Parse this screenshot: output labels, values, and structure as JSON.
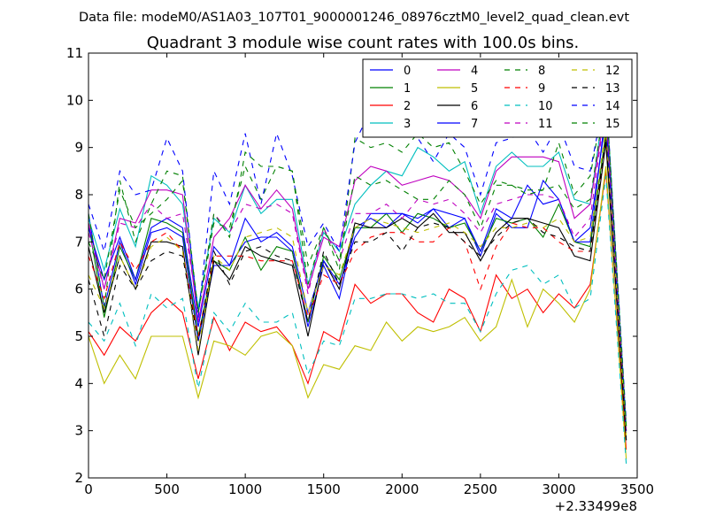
{
  "figure": {
    "suptitle": "Data file: modeM0/AS1A03_107T01_9000001246_08976cztM0_level2_quad_clean.evt"
  },
  "chart_data": {
    "type": "line",
    "title": "Quadrant 3 module wise count rates with 100.0s bins.",
    "xlabel": "",
    "ylabel": "",
    "x_offset_label": "+2.33499e8",
    "xlim": [
      0,
      3500
    ],
    "ylim": [
      2,
      11
    ],
    "xticks": [
      0,
      500,
      1000,
      1500,
      2000,
      2500,
      3000,
      3500
    ],
    "yticks": [
      2,
      3,
      4,
      5,
      6,
      7,
      8,
      9,
      10,
      11
    ],
    "grid": false,
    "legend": {
      "placement": "top-right",
      "columns": 4
    },
    "x": [
      0,
      100,
      200,
      300,
      400,
      500,
      600,
      700,
      800,
      900,
      1000,
      1100,
      1200,
      1300,
      1400,
      1500,
      1600,
      1700,
      1800,
      1900,
      2000,
      2100,
      2200,
      2300,
      2400,
      2500,
      2600,
      2700,
      2800,
      2900,
      3000,
      3100,
      3200,
      3300,
      3430
    ],
    "series": [
      {
        "name": "0",
        "color": "#0000ff",
        "dash": "solid",
        "values": [
          7.6,
          5.6,
          7.0,
          6.1,
          7.2,
          7.3,
          7.1,
          4.9,
          6.5,
          6.5,
          7.0,
          7.1,
          7.1,
          6.8,
          5.2,
          6.5,
          5.8,
          7.3,
          7.5,
          7.3,
          7.6,
          7.5,
          7.7,
          7.3,
          7.5,
          6.7,
          7.6,
          7.3,
          7.3,
          8.3,
          7.9,
          7.0,
          7.0,
          9.8,
          3.0
        ]
      },
      {
        "name": "1",
        "color": "#008000",
        "dash": "solid",
        "values": [
          7.4,
          5.4,
          6.9,
          6.2,
          7.5,
          7.4,
          7.2,
          5.0,
          6.6,
          6.4,
          7.1,
          6.4,
          6.9,
          6.8,
          5.3,
          6.7,
          6.2,
          7.3,
          7.3,
          7.6,
          7.2,
          7.6,
          7.5,
          7.3,
          7.4,
          6.8,
          7.5,
          7.4,
          7.5,
          7.1,
          7.8,
          7.0,
          6.9,
          9.3,
          2.8
        ]
      },
      {
        "name": "2",
        "color": "#ff0000",
        "dash": "solid",
        "values": [
          5.1,
          4.6,
          5.2,
          4.9,
          5.5,
          5.8,
          5.5,
          4.1,
          5.4,
          4.7,
          5.3,
          5.1,
          5.2,
          4.8,
          4.0,
          5.1,
          4.9,
          6.1,
          5.7,
          5.9,
          5.9,
          5.5,
          5.3,
          6.0,
          5.8,
          5.1,
          6.3,
          5.8,
          6.0,
          5.5,
          5.9,
          5.6,
          6.1,
          8.5,
          2.6
        ]
      },
      {
        "name": "3",
        "color": "#00bfbf",
        "dash": "solid",
        "values": [
          7.5,
          6.4,
          7.7,
          6.9,
          8.4,
          8.2,
          7.8,
          5.6,
          7.5,
          7.2,
          8.2,
          7.6,
          7.9,
          7.9,
          6.1,
          7.2,
          6.8,
          7.8,
          8.2,
          8.5,
          8.4,
          9.0,
          8.8,
          8.5,
          8.7,
          7.6,
          8.6,
          8.9,
          8.6,
          8.6,
          8.9,
          7.9,
          7.8,
          10.2,
          3.1
        ]
      },
      {
        "name": "4",
        "color": "#bf00bf",
        "dash": "solid",
        "values": [
          7.4,
          6.0,
          7.5,
          7.4,
          8.1,
          8.1,
          8.0,
          5.3,
          7.1,
          7.5,
          8.2,
          7.7,
          8.1,
          7.7,
          6.0,
          7.1,
          6.9,
          8.3,
          8.6,
          8.5,
          8.2,
          8.3,
          8.4,
          8.3,
          8.0,
          7.5,
          8.5,
          8.8,
          8.8,
          8.8,
          8.7,
          7.5,
          7.8,
          9.9,
          3.0
        ]
      },
      {
        "name": "5",
        "color": "#bfbf00",
        "dash": "solid",
        "values": [
          5.0,
          4.0,
          4.6,
          4.1,
          5.0,
          5.0,
          5.0,
          3.7,
          4.9,
          4.8,
          4.6,
          5.0,
          5.1,
          4.8,
          3.7,
          4.4,
          4.3,
          4.8,
          4.7,
          5.3,
          4.9,
          5.2,
          5.1,
          5.2,
          5.4,
          4.9,
          5.2,
          6.2,
          5.2,
          6.0,
          5.7,
          5.3,
          6.0,
          8.6,
          2.4
        ]
      },
      {
        "name": "6",
        "color": "#000000",
        "dash": "solid",
        "values": [
          6.9,
          5.5,
          6.7,
          6.0,
          7.0,
          7.0,
          6.9,
          4.6,
          6.6,
          6.2,
          6.9,
          6.7,
          6.6,
          6.5,
          5.0,
          6.6,
          6.0,
          7.4,
          7.3,
          7.3,
          7.5,
          7.3,
          7.6,
          7.2,
          7.2,
          6.6,
          7.2,
          7.5,
          7.5,
          7.4,
          7.3,
          6.7,
          6.6,
          9.1,
          2.8
        ]
      },
      {
        "name": "7",
        "color": "#0000ff",
        "dash": "solid",
        "values": [
          7.3,
          6.2,
          7.1,
          6.2,
          7.3,
          7.5,
          7.3,
          5.2,
          6.9,
          6.5,
          7.5,
          7.0,
          7.2,
          6.9,
          5.5,
          6.6,
          6.1,
          7.1,
          7.6,
          7.6,
          7.6,
          7.4,
          7.7,
          7.6,
          7.5,
          6.8,
          7.7,
          7.5,
          8.2,
          7.8,
          7.9,
          7.0,
          7.3,
          9.6,
          3.0
        ]
      },
      {
        "name": "8",
        "color": "#008000",
        "dash": "dashed",
        "values": [
          7.6,
          5.6,
          8.3,
          7.0,
          7.8,
          8.5,
          8.4,
          5.5,
          7.4,
          7.3,
          8.6,
          7.9,
          8.6,
          8.5,
          6.1,
          7.3,
          6.4,
          9.2,
          9.0,
          9.1,
          8.9,
          9.3,
          9.0,
          9.1,
          8.5,
          7.8,
          8.3,
          8.2,
          8.0,
          8.1,
          9.1,
          8.0,
          8.4,
          10.2,
          3.1
        ]
      },
      {
        "name": "9",
        "color": "#ff0000",
        "dash": "dashed",
        "values": [
          6.7,
          5.8,
          7.0,
          6.4,
          7.0,
          7.2,
          6.8,
          5.0,
          6.7,
          6.7,
          6.7,
          6.6,
          6.6,
          6.6,
          5.4,
          6.3,
          6.1,
          6.8,
          7.1,
          7.2,
          7.2,
          7.0,
          7.0,
          7.3,
          7.0,
          6.0,
          6.9,
          7.4,
          7.3,
          7.3,
          7.0,
          6.8,
          6.8,
          9.2,
          2.9
        ]
      },
      {
        "name": "10",
        "color": "#00bfbf",
        "dash": "dashed",
        "values": [
          5.3,
          4.9,
          5.7,
          4.8,
          5.9,
          5.6,
          5.8,
          3.9,
          5.5,
          5.1,
          5.7,
          5.3,
          5.3,
          5.5,
          4.2,
          4.9,
          4.8,
          5.8,
          5.8,
          5.9,
          5.9,
          5.8,
          5.9,
          5.7,
          5.7,
          5.1,
          5.9,
          6.4,
          6.5,
          6.1,
          6.3,
          5.6,
          5.8,
          8.4,
          2.3
        ]
      },
      {
        "name": "11",
        "color": "#bf00bf",
        "dash": "dashed",
        "values": [
          7.2,
          6.0,
          7.4,
          7.3,
          7.8,
          7.5,
          7.6,
          5.5,
          7.6,
          7.2,
          7.8,
          7.7,
          7.8,
          7.6,
          5.9,
          7.3,
          6.6,
          7.6,
          7.6,
          7.8,
          7.5,
          7.9,
          7.8,
          7.9,
          7.6,
          7.2,
          7.8,
          7.9,
          8.0,
          8.0,
          7.9,
          7.1,
          7.5,
          9.9,
          3.0
        ]
      },
      {
        "name": "12",
        "color": "#bfbf00",
        "dash": "dashed",
        "values": [
          6.3,
          5.6,
          6.7,
          6.0,
          6.9,
          7.1,
          6.8,
          4.7,
          6.7,
          6.4,
          7.1,
          7.2,
          7.3,
          7.1,
          5.5,
          6.5,
          6.3,
          7.3,
          7.5,
          7.4,
          7.3,
          7.2,
          7.3,
          7.4,
          7.2,
          6.9,
          7.3,
          7.3,
          7.4,
          7.3,
          7.5,
          7.0,
          7.1,
          9.4,
          2.9
        ]
      },
      {
        "name": "13",
        "color": "#000000",
        "dash": "dashed",
        "values": [
          6.2,
          5.0,
          6.5,
          6.0,
          6.6,
          6.8,
          6.7,
          4.9,
          6.8,
          6.1,
          6.8,
          6.9,
          6.7,
          6.6,
          5.3,
          6.8,
          6.1,
          7.0,
          7.0,
          7.2,
          6.8,
          7.3,
          7.4,
          7.3,
          7.0,
          6.7,
          7.1,
          7.4,
          7.5,
          7.2,
          7.1,
          6.9,
          6.8,
          9.2,
          2.8
        ]
      },
      {
        "name": "14",
        "color": "#0000ff",
        "dash": "dashed",
        "values": [
          7.8,
          6.8,
          8.5,
          8.0,
          8.1,
          9.2,
          8.5,
          5.4,
          8.5,
          7.8,
          9.3,
          7.8,
          9.3,
          8.4,
          6.9,
          7.4,
          6.8,
          9.1,
          9.8,
          9.5,
          9.5,
          9.2,
          8.7,
          9.3,
          9.0,
          8.0,
          9.1,
          9.2,
          9.4,
          8.9,
          9.5,
          8.6,
          8.5,
          10.2,
          3.2
        ]
      },
      {
        "name": "15",
        "color": "#008000",
        "dash": "dashed",
        "values": [
          7.0,
          6.2,
          8.1,
          7.3,
          7.6,
          7.9,
          8.3,
          5.5,
          7.6,
          7.1,
          8.9,
          8.6,
          8.6,
          8.5,
          6.5,
          7.3,
          6.6,
          8.4,
          8.2,
          8.3,
          8.1,
          7.9,
          7.9,
          8.3,
          8.0,
          7.3,
          8.2,
          8.2,
          8.1,
          8.1,
          8.2,
          7.7,
          7.9,
          10.1,
          3.1
        ]
      }
    ]
  }
}
